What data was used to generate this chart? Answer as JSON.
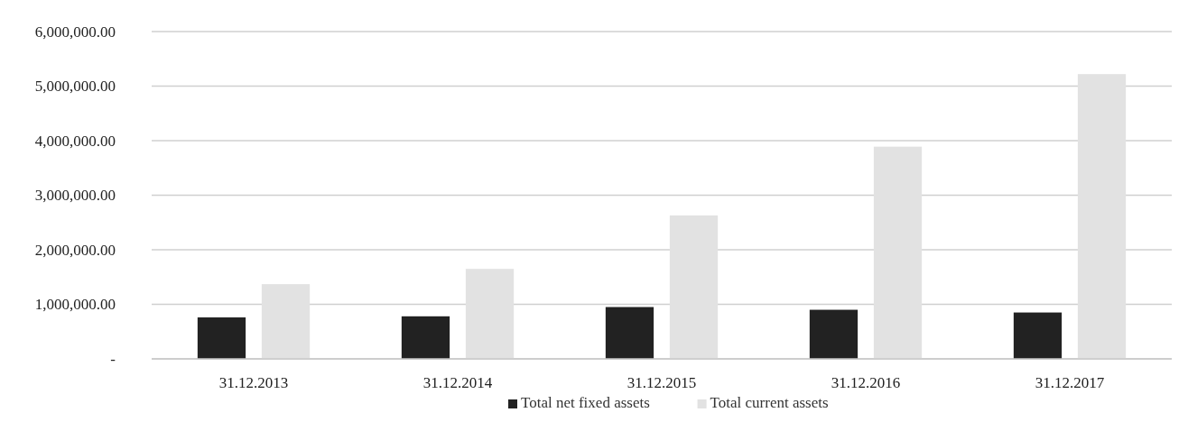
{
  "chart_data": {
    "type": "bar",
    "categories": [
      "31.12.2013",
      "31.12.2014",
      "31.12.2015",
      "31.12.2016",
      "31.12.2017"
    ],
    "series": [
      {
        "name": "Total net fixed assets",
        "color": "#222222",
        "values": [
          760000,
          780000,
          950000,
          900000,
          850000
        ]
      },
      {
        "name": "Total current assets",
        "color": "#e2e2e2",
        "values": [
          1370000,
          1650000,
          2630000,
          3890000,
          5220000
        ]
      }
    ],
    "ylim": [
      0,
      6000000
    ],
    "yticks": [
      {
        "value": 0,
        "label": "-"
      },
      {
        "value": 1000000,
        "label": "1,000,000.00"
      },
      {
        "value": 2000000,
        "label": "2,000,000.00"
      },
      {
        "value": 3000000,
        "label": "3,000,000.00"
      },
      {
        "value": 4000000,
        "label": "4,000,000.00"
      },
      {
        "value": 5000000,
        "label": "5,000,000.00"
      },
      {
        "value": 6000000,
        "label": "6,000,000.00"
      }
    ],
    "grid": "y",
    "legend": "bottom"
  }
}
